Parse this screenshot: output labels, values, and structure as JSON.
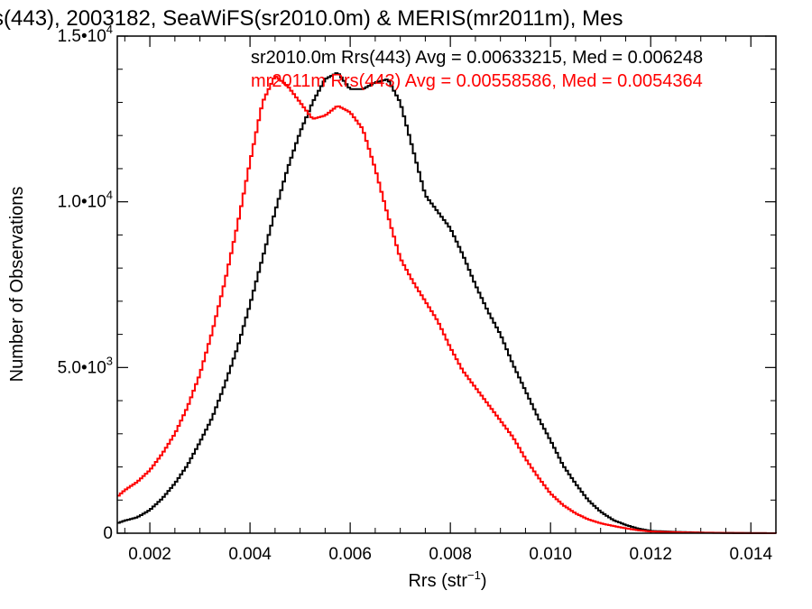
{
  "chart_data": {
    "type": "line",
    "title": "s(443), 2003182, SeaWiFS(sr2010.0m) & MERIS(mr2011m), Mes",
    "xlabel": "Rrs (str",
    "xlabel_sup": "−1",
    "xlabel_close": ")",
    "ylabel": "Number of Observations",
    "xlim": [
      0.00135,
      0.0145
    ],
    "ylim": [
      0,
      15000
    ],
    "x_ticks": [
      {
        "value": 0.002,
        "label": "0.002"
      },
      {
        "value": 0.004,
        "label": "0.004"
      },
      {
        "value": 0.006,
        "label": "0.006"
      },
      {
        "value": 0.008,
        "label": "0.008"
      },
      {
        "value": 0.01,
        "label": "0.010"
      },
      {
        "value": 0.012,
        "label": "0.012"
      },
      {
        "value": 0.014,
        "label": "0.014"
      }
    ],
    "y_ticks": [
      {
        "value": 0,
        "label": "0",
        "sup": ""
      },
      {
        "value": 5000,
        "label": "5.0•10",
        "sup": "3"
      },
      {
        "value": 10000,
        "label": "1.0•10",
        "sup": "4"
      },
      {
        "value": 15000,
        "label": "1.5•10",
        "sup": "4"
      }
    ],
    "grid": false,
    "series": [
      {
        "name": "sr2010.0m",
        "color": "#000000",
        "annotation": "sr2010.0m Rrs(443) Avg = 0.00633215, Med = 0.006248",
        "x": [
          0.00135,
          0.0015,
          0.00175,
          0.002,
          0.00225,
          0.0025,
          0.00275,
          0.003,
          0.00325,
          0.0035,
          0.00375,
          0.004,
          0.00425,
          0.0045,
          0.00475,
          0.005,
          0.00525,
          0.0055,
          0.00575,
          0.006,
          0.00625,
          0.0065,
          0.00675,
          0.007,
          0.00725,
          0.0075,
          0.00775,
          0.008,
          0.00825,
          0.0085,
          0.00875,
          0.009,
          0.00925,
          0.0095,
          0.00975,
          0.01,
          0.01025,
          0.0105,
          0.01075,
          0.011,
          0.01125,
          0.0115,
          0.01175,
          0.012,
          0.0125,
          0.013,
          0.0135,
          0.014,
          0.0145
        ],
        "y": [
          300,
          380,
          480,
          700,
          1050,
          1500,
          2050,
          2750,
          3500,
          4500,
          5600,
          6900,
          8300,
          9700,
          11000,
          12100,
          13000,
          13700,
          13900,
          13400,
          13400,
          13600,
          13700,
          13000,
          11600,
          10200,
          9700,
          9200,
          8400,
          7500,
          6700,
          6000,
          5100,
          4300,
          3500,
          2800,
          2050,
          1500,
          1000,
          650,
          400,
          250,
          140,
          70,
          40,
          20,
          10,
          5,
          0
        ]
      },
      {
        "name": "mr2011m",
        "color": "#ff0000",
        "annotation": "mr2011m Rrs(443) Avg = 0.00558586, Med = 0.0054364",
        "x": [
          0.00135,
          0.0015,
          0.00175,
          0.002,
          0.00225,
          0.0025,
          0.00275,
          0.003,
          0.00325,
          0.0035,
          0.00375,
          0.004,
          0.00425,
          0.0045,
          0.00475,
          0.005,
          0.00525,
          0.0055,
          0.00575,
          0.006,
          0.00625,
          0.0065,
          0.00675,
          0.007,
          0.00725,
          0.0075,
          0.00775,
          0.008,
          0.00825,
          0.0085,
          0.00875,
          0.009,
          0.00925,
          0.0095,
          0.00975,
          0.01,
          0.01025,
          0.0105,
          0.01075,
          0.011,
          0.01125,
          0.0115,
          0.01175,
          0.012,
          0.0125,
          0.013,
          0.0135,
          0.014,
          0.0145
        ],
        "y": [
          1100,
          1300,
          1550,
          1900,
          2400,
          3000,
          3800,
          4800,
          6100,
          7600,
          9300,
          11200,
          13000,
          13800,
          13500,
          13000,
          12500,
          12600,
          12900,
          12700,
          12200,
          11000,
          9600,
          8300,
          7600,
          7000,
          6400,
          5600,
          4900,
          4400,
          3900,
          3400,
          2900,
          2250,
          1700,
          1200,
          850,
          600,
          420,
          300,
          220,
          150,
          90,
          50,
          30,
          15,
          8,
          4,
          0
        ]
      }
    ]
  }
}
